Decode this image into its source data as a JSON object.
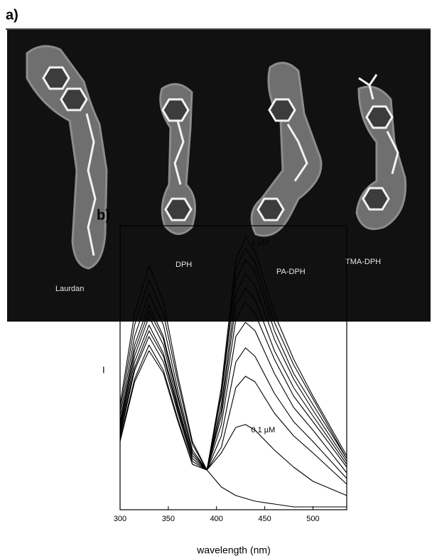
{
  "panel_a": {
    "label": "a)",
    "molecule_labels": [
      "Laurdan",
      "DPH",
      "PA-DPH",
      "TMA-DPH"
    ]
  },
  "chart_data": {
    "type": "line",
    "panel_label": "b)",
    "x_label": "wavelength (nm)",
    "y_label": "I",
    "x": [
      300,
      315,
      330,
      345,
      360,
      375,
      390,
      405,
      420,
      430,
      440,
      460,
      480,
      500,
      535
    ],
    "xlim": [
      300,
      535
    ],
    "xticks": [
      300,
      350,
      400,
      450,
      500
    ],
    "ylim": [
      0,
      100
    ],
    "series": [
      {
        "name": "1 µM",
        "color": "#000000",
        "values": [
          37,
          69,
          86,
          73,
          47,
          24,
          14,
          43,
          88,
          96,
          91,
          69,
          53,
          40,
          19
        ]
      },
      {
        "color": "#000000",
        "values": [
          35,
          65,
          81,
          69,
          45,
          23,
          14,
          41,
          85,
          92,
          87,
          66,
          51,
          39,
          18
        ]
      },
      {
        "color": "#000000",
        "values": [
          33,
          61,
          76,
          65,
          42,
          21,
          14,
          40,
          81,
          88,
          84,
          63,
          48,
          37,
          18
        ]
      },
      {
        "color": "#000000",
        "values": [
          31,
          58,
          72,
          61,
          40,
          20,
          14,
          37,
          76,
          83,
          79,
          60,
          46,
          35,
          17
        ]
      },
      {
        "color": "#000000",
        "values": [
          30,
          56,
          70,
          60,
          39,
          20,
          14,
          35,
          72,
          78,
          74,
          56,
          43,
          33,
          16
        ]
      },
      {
        "color": "#000000",
        "values": [
          29,
          54,
          68,
          58,
          37,
          19,
          14,
          33,
          67,
          73,
          69,
          53,
          40,
          31,
          15
        ]
      },
      {
        "color": "#000000",
        "values": [
          28,
          52,
          65,
          55,
          36,
          18,
          14,
          30,
          61,
          66,
          63,
          48,
          36,
          28,
          13
        ]
      },
      {
        "color": "#000000",
        "values": [
          27,
          50,
          63,
          54,
          35,
          18,
          14,
          26,
          52,
          57,
          54,
          41,
          31,
          24,
          11
        ]
      },
      {
        "color": "#000000",
        "values": [
          26,
          49,
          61,
          52,
          34,
          17,
          14,
          22,
          43,
          47,
          45,
          34,
          26,
          20,
          9
        ]
      },
      {
        "name": "0.1 µM",
        "color": "#000000",
        "values": [
          25,
          46,
          58,
          49,
          32,
          16,
          14,
          20,
          29,
          30,
          28,
          21,
          15,
          10,
          5
        ]
      },
      {
        "color": "#000000",
        "values": [
          24,
          45,
          56,
          48,
          31,
          16,
          14,
          8,
          5,
          4,
          3,
          2,
          1,
          1,
          1
        ]
      }
    ]
  }
}
